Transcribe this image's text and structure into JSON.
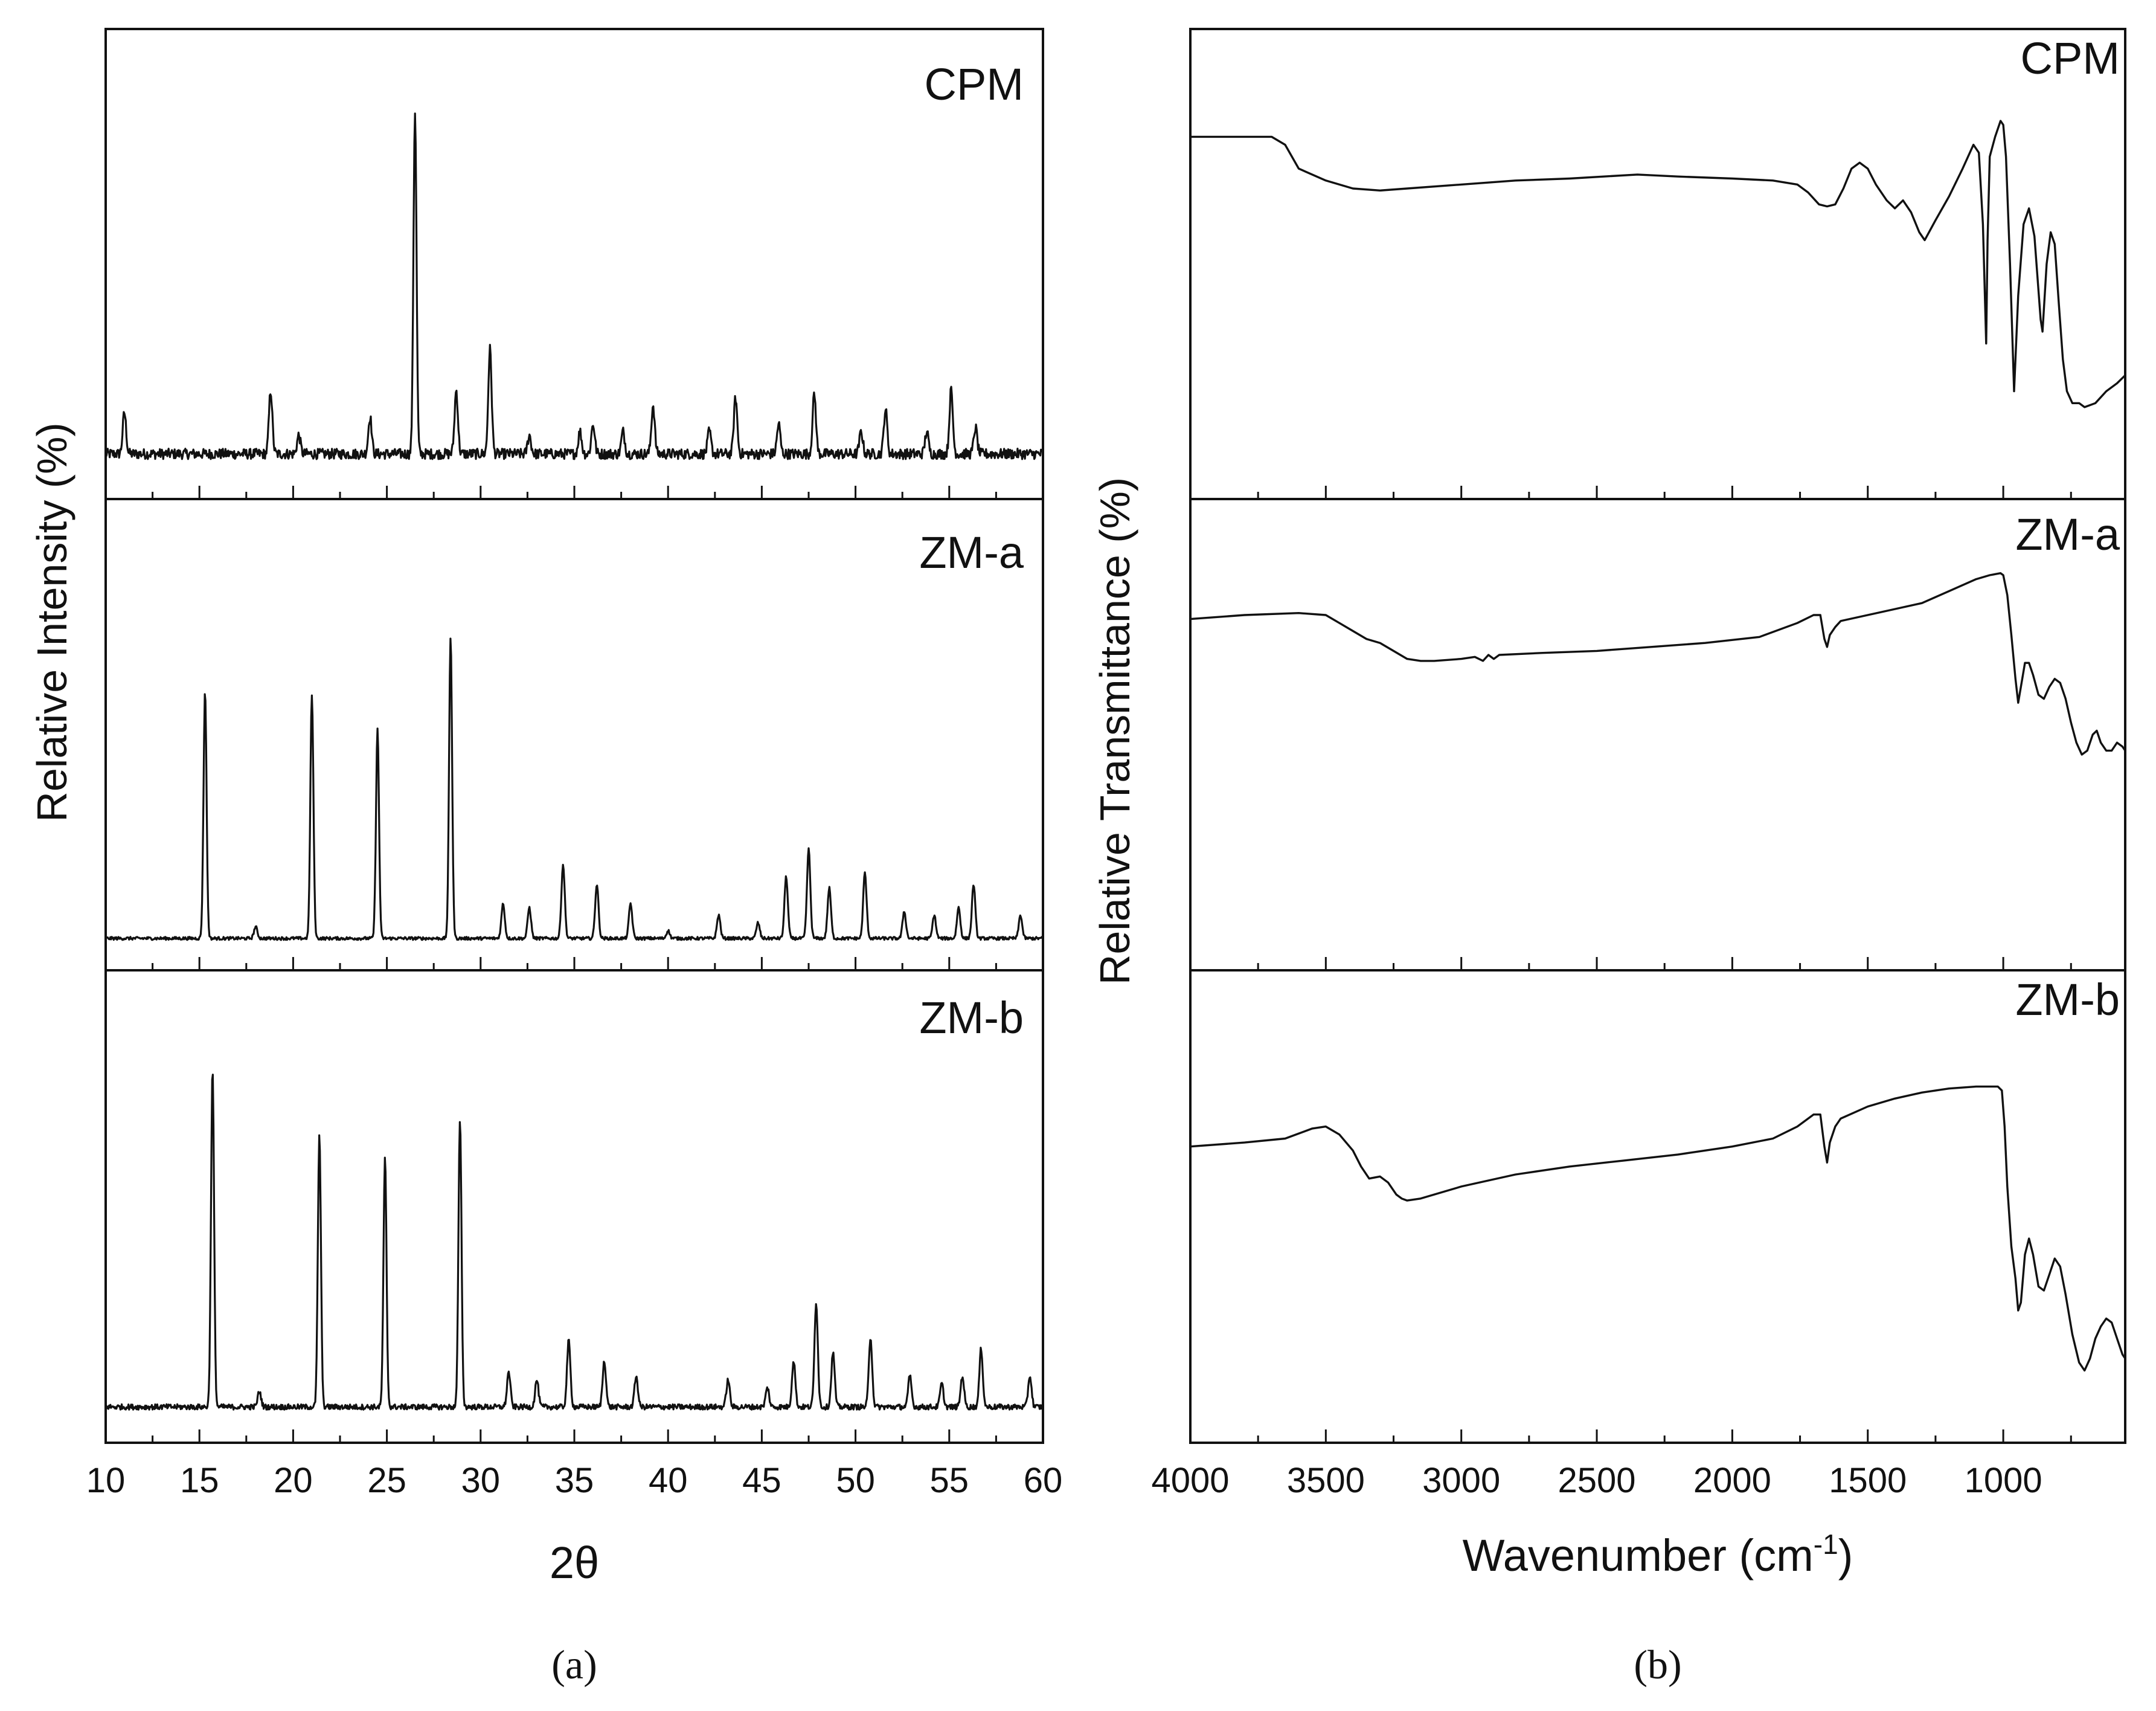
{
  "figure": {
    "caption_a": "(a)",
    "caption_b": "(b)"
  },
  "colors": {
    "line": "#111111",
    "axis": "#111111",
    "background": "#ffffff"
  },
  "chart_data": [
    {
      "type": "line",
      "id": "xrd",
      "title": "",
      "xlabel": "2θ",
      "ylabel": "Relative Intensity (%)",
      "xlim": [
        10,
        60
      ],
      "xticks": [
        10,
        15,
        20,
        25,
        30,
        35,
        40,
        45,
        50,
        55,
        60
      ],
      "xtick_labels": [
        "10",
        "15",
        "20",
        "25",
        "30",
        "35",
        "40",
        "45",
        "50",
        "55",
        "60"
      ],
      "ylim": [
        0,
        100
      ],
      "grid": false,
      "series": [
        {
          "name": "CPM",
          "baseline": 4,
          "noise": 1.4,
          "peaks": [
            [
              11.0,
              11
            ],
            [
              18.8,
              17
            ],
            [
              20.3,
              5
            ],
            [
              24.1,
              10
            ],
            [
              26.5,
              92
            ],
            [
              28.7,
              17
            ],
            [
              30.5,
              28
            ],
            [
              32.6,
              5
            ],
            [
              35.3,
              6
            ],
            [
              36.0,
              8
            ],
            [
              37.6,
              6
            ],
            [
              39.2,
              13
            ],
            [
              42.2,
              6
            ],
            [
              43.6,
              15
            ],
            [
              45.9,
              8
            ],
            [
              47.8,
              16
            ],
            [
              50.3,
              6
            ],
            [
              51.6,
              12
            ],
            [
              53.8,
              6
            ],
            [
              55.1,
              17
            ],
            [
              56.4,
              7
            ]
          ]
        },
        {
          "name": "ZM-a",
          "baseline": 2,
          "noise": 0.4,
          "peaks": [
            [
              15.3,
              64
            ],
            [
              18.0,
              3
            ],
            [
              21.0,
              63
            ],
            [
              24.5,
              54
            ],
            [
              28.4,
              78
            ],
            [
              31.2,
              9
            ],
            [
              32.6,
              8
            ],
            [
              34.4,
              19
            ],
            [
              36.2,
              14
            ],
            [
              38.0,
              9
            ],
            [
              40.0,
              2
            ],
            [
              42.7,
              6
            ],
            [
              44.8,
              4
            ],
            [
              46.3,
              16
            ],
            [
              47.5,
              23
            ],
            [
              48.6,
              13
            ],
            [
              50.5,
              17
            ],
            [
              52.6,
              7
            ],
            [
              54.2,
              6
            ],
            [
              55.5,
              8
            ],
            [
              56.3,
              14
            ],
            [
              58.8,
              6
            ]
          ]
        },
        {
          "name": "ZM-b",
          "baseline": 3,
          "noise": 0.7,
          "peaks": [
            [
              15.7,
              87
            ],
            [
              18.2,
              4
            ],
            [
              21.4,
              70
            ],
            [
              24.9,
              64
            ],
            [
              28.9,
              74
            ],
            [
              31.5,
              9
            ],
            [
              33.0,
              7
            ],
            [
              34.7,
              17
            ],
            [
              36.6,
              12
            ],
            [
              38.3,
              8
            ],
            [
              43.2,
              7
            ],
            [
              45.3,
              5
            ],
            [
              46.7,
              12
            ],
            [
              47.9,
              27
            ],
            [
              48.8,
              14
            ],
            [
              50.8,
              18
            ],
            [
              52.9,
              8
            ],
            [
              54.6,
              6
            ],
            [
              55.7,
              8
            ],
            [
              56.7,
              15
            ],
            [
              59.3,
              8
            ]
          ]
        }
      ]
    },
    {
      "type": "line",
      "id": "ftir",
      "title": "",
      "xlabel": "Wavenumber (cm",
      "xlabel_superscript": "-1",
      "xlabel_suffix": ")",
      "ylabel": "Relative Transmittance (%)",
      "xlim": [
        4000,
        550
      ],
      "xticks": [
        4000,
        3500,
        3000,
        2500,
        2000,
        1500,
        1000
      ],
      "xtick_labels": [
        "4000",
        "3500",
        "3000",
        "2500",
        "2000",
        "1500",
        "1000"
      ],
      "ylim": [
        0,
        100
      ],
      "grid": false,
      "series": [
        {
          "name": "CPM",
          "points": [
            [
              4000,
              82
            ],
            [
              3700,
              82
            ],
            [
              3650,
              80
            ],
            [
              3600,
              74
            ],
            [
              3500,
              71
            ],
            [
              3400,
              69
            ],
            [
              3300,
              68.5
            ],
            [
              3200,
              69
            ],
            [
              3000,
              70
            ],
            [
              2800,
              71
            ],
            [
              2600,
              71.5
            ],
            [
              2350,
              72.5
            ],
            [
              2200,
              72
            ],
            [
              2000,
              71.5
            ],
            [
              1850,
              71
            ],
            [
              1760,
              70
            ],
            [
              1720,
              68
            ],
            [
              1680,
              65
            ],
            [
              1650,
              64.5
            ],
            [
              1620,
              65
            ],
            [
              1590,
              69
            ],
            [
              1560,
              74
            ],
            [
              1530,
              75.5
            ],
            [
              1500,
              74
            ],
            [
              1470,
              70
            ],
            [
              1430,
              66
            ],
            [
              1400,
              64
            ],
            [
              1370,
              66
            ],
            [
              1340,
              63
            ],
            [
              1310,
              58
            ],
            [
              1290,
              56
            ],
            [
              1250,
              61
            ],
            [
              1200,
              67
            ],
            [
              1150,
              74
            ],
            [
              1110,
              80
            ],
            [
              1090,
              78
            ],
            [
              1075,
              60
            ],
            [
              1063,
              30
            ],
            [
              1058,
              56
            ],
            [
              1050,
              77
            ],
            [
              1030,
              82
            ],
            [
              1010,
              86
            ],
            [
              1000,
              85
            ],
            [
              990,
              77
            ],
            [
              975,
              50
            ],
            [
              960,
              18
            ],
            [
              945,
              42
            ],
            [
              925,
              60
            ],
            [
              905,
              64
            ],
            [
              885,
              57
            ],
            [
              862,
              36
            ],
            [
              855,
              33
            ],
            [
              840,
              50
            ],
            [
              825,
              58
            ],
            [
              810,
              55
            ],
            [
              795,
              40
            ],
            [
              780,
              26
            ],
            [
              765,
              18
            ],
            [
              745,
              15
            ],
            [
              720,
              15
            ],
            [
              700,
              14
            ],
            [
              660,
              15
            ],
            [
              620,
              18
            ],
            [
              580,
              20
            ],
            [
              550,
              22
            ]
          ]
        },
        {
          "name": "ZM-a",
          "points": [
            [
              4000,
              79
            ],
            [
              3800,
              80
            ],
            [
              3600,
              80.5
            ],
            [
              3500,
              80
            ],
            [
              3450,
              78
            ],
            [
              3400,
              76
            ],
            [
              3350,
              74
            ],
            [
              3300,
              73
            ],
            [
              3250,
              71
            ],
            [
              3200,
              69
            ],
            [
              3150,
              68.5
            ],
            [
              3100,
              68.5
            ],
            [
              3000,
              69
            ],
            [
              2950,
              69.5
            ],
            [
              2920,
              68.5
            ],
            [
              2900,
              70
            ],
            [
              2880,
              69
            ],
            [
              2860,
              70
            ],
            [
              2700,
              70.5
            ],
            [
              2500,
              71
            ],
            [
              2300,
              72
            ],
            [
              2100,
              73
            ],
            [
              1900,
              74.5
            ],
            [
              1760,
              78
            ],
            [
              1700,
              80
            ],
            [
              1675,
              80
            ],
            [
              1660,
              74
            ],
            [
              1650,
              72
            ],
            [
              1640,
              75
            ],
            [
              1620,
              77
            ],
            [
              1600,
              78.5
            ],
            [
              1500,
              80
            ],
            [
              1400,
              81.5
            ],
            [
              1300,
              83
            ],
            [
              1200,
              86
            ],
            [
              1100,
              89
            ],
            [
              1050,
              90
            ],
            [
              1010,
              90.5
            ],
            [
              1000,
              90
            ],
            [
              985,
              85
            ],
            [
              970,
              75
            ],
            [
              955,
              64
            ],
            [
              945,
              58
            ],
            [
              935,
              62
            ],
            [
              920,
              68
            ],
            [
              905,
              68
            ],
            [
              890,
              65
            ],
            [
              870,
              60
            ],
            [
              850,
              59
            ],
            [
              830,
              62
            ],
            [
              810,
              64
            ],
            [
              790,
              63
            ],
            [
              770,
              59
            ],
            [
              750,
              53
            ],
            [
              730,
              48
            ],
            [
              710,
              45
            ],
            [
              690,
              46
            ],
            [
              670,
              50
            ],
            [
              655,
              51
            ],
            [
              640,
              48
            ],
            [
              620,
              46
            ],
            [
              600,
              46
            ],
            [
              580,
              48
            ],
            [
              560,
              47
            ],
            [
              550,
              46
            ]
          ]
        },
        {
          "name": "ZM-b",
          "points": [
            [
              4000,
              65
            ],
            [
              3800,
              66
            ],
            [
              3650,
              67
            ],
            [
              3550,
              69.5
            ],
            [
              3500,
              70
            ],
            [
              3450,
              68
            ],
            [
              3400,
              64
            ],
            [
              3370,
              60
            ],
            [
              3340,
              57
            ],
            [
              3300,
              57.5
            ],
            [
              3270,
              56
            ],
            [
              3240,
              53
            ],
            [
              3220,
              52
            ],
            [
              3200,
              51.5
            ],
            [
              3150,
              52
            ],
            [
              3000,
              55
            ],
            [
              2800,
              58
            ],
            [
              2600,
              60
            ],
            [
              2400,
              61.5
            ],
            [
              2200,
              63
            ],
            [
              2000,
              65
            ],
            [
              1850,
              67
            ],
            [
              1760,
              70
            ],
            [
              1700,
              73
            ],
            [
              1675,
              73
            ],
            [
              1660,
              65
            ],
            [
              1650,
              61
            ],
            [
              1640,
              66
            ],
            [
              1620,
              70
            ],
            [
              1600,
              72
            ],
            [
              1500,
              75
            ],
            [
              1400,
              77
            ],
            [
              1300,
              78.5
            ],
            [
              1200,
              79.5
            ],
            [
              1100,
              80
            ],
            [
              1050,
              80
            ],
            [
              1020,
              80
            ],
            [
              1005,
              79
            ],
            [
              995,
              70
            ],
            [
              985,
              55
            ],
            [
              970,
              40
            ],
            [
              955,
              32
            ],
            [
              945,
              24
            ],
            [
              935,
              26
            ],
            [
              920,
              38
            ],
            [
              905,
              42
            ],
            [
              890,
              38
            ],
            [
              870,
              30
            ],
            [
              850,
              29
            ],
            [
              830,
              33
            ],
            [
              810,
              37
            ],
            [
              790,
              35
            ],
            [
              770,
              28
            ],
            [
              745,
              18
            ],
            [
              720,
              11
            ],
            [
              700,
              9
            ],
            [
              680,
              12
            ],
            [
              660,
              17
            ],
            [
              640,
              20
            ],
            [
              620,
              22
            ],
            [
              600,
              21
            ],
            [
              580,
              17
            ],
            [
              560,
              13
            ],
            [
              550,
              12
            ]
          ]
        }
      ]
    }
  ]
}
